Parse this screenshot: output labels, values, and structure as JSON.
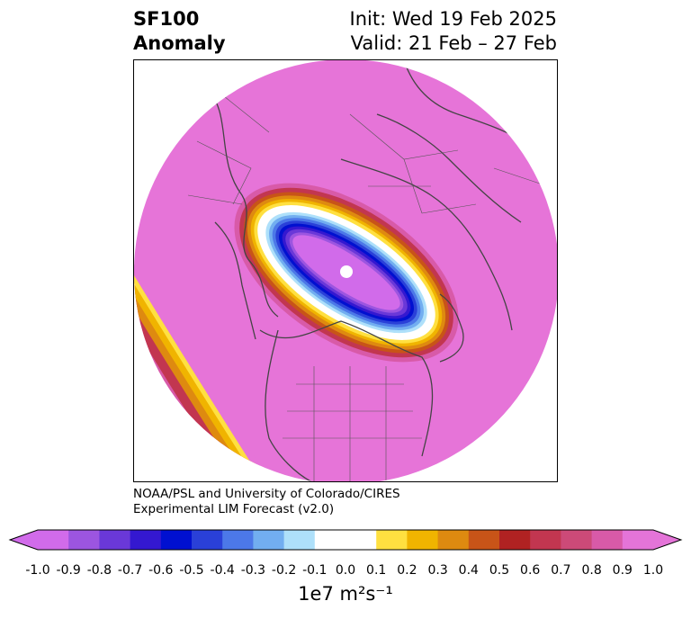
{
  "title": {
    "left_line1": "SF100",
    "left_line2": "Anomaly",
    "right_line1": "Init: Wed 19 Feb 2025",
    "right_line2": "Valid: 21 Feb – 27 Feb"
  },
  "credit": {
    "line1": "NOAA/PSL and University of Colorado/CIRES",
    "line2": "Experimental LIM Forecast (v2.0)"
  },
  "colorbar": {
    "units_text": "1e7 m²s⁻¹",
    "ticks": [
      "-1.0",
      "-0.9",
      "-0.8",
      "-0.7",
      "-0.6",
      "-0.5",
      "-0.4",
      "-0.3",
      "-0.2",
      "-0.1",
      "0.0",
      "0.1",
      "0.2",
      "0.3",
      "0.4",
      "0.5",
      "0.6",
      "0.7",
      "0.8",
      "0.9",
      "1.0"
    ],
    "colors": [
      "#d16bea",
      "#9c55e0",
      "#6a38d8",
      "#3418d0",
      "#0010d0",
      "#2a40d8",
      "#4c78e8",
      "#72aef0",
      "#aee0fa",
      "#ffffff",
      "#ffffff",
      "#ffe040",
      "#f0b400",
      "#de8a10",
      "#c85418",
      "#b02222",
      "#c23650",
      "#cc4a78",
      "#d85aa8",
      "#e474d8"
    ],
    "extend": "both"
  },
  "map": {
    "projection": "polar-stereographic",
    "background_color": "#e674d8",
    "pole_marker_color": "#ffffff"
  }
}
